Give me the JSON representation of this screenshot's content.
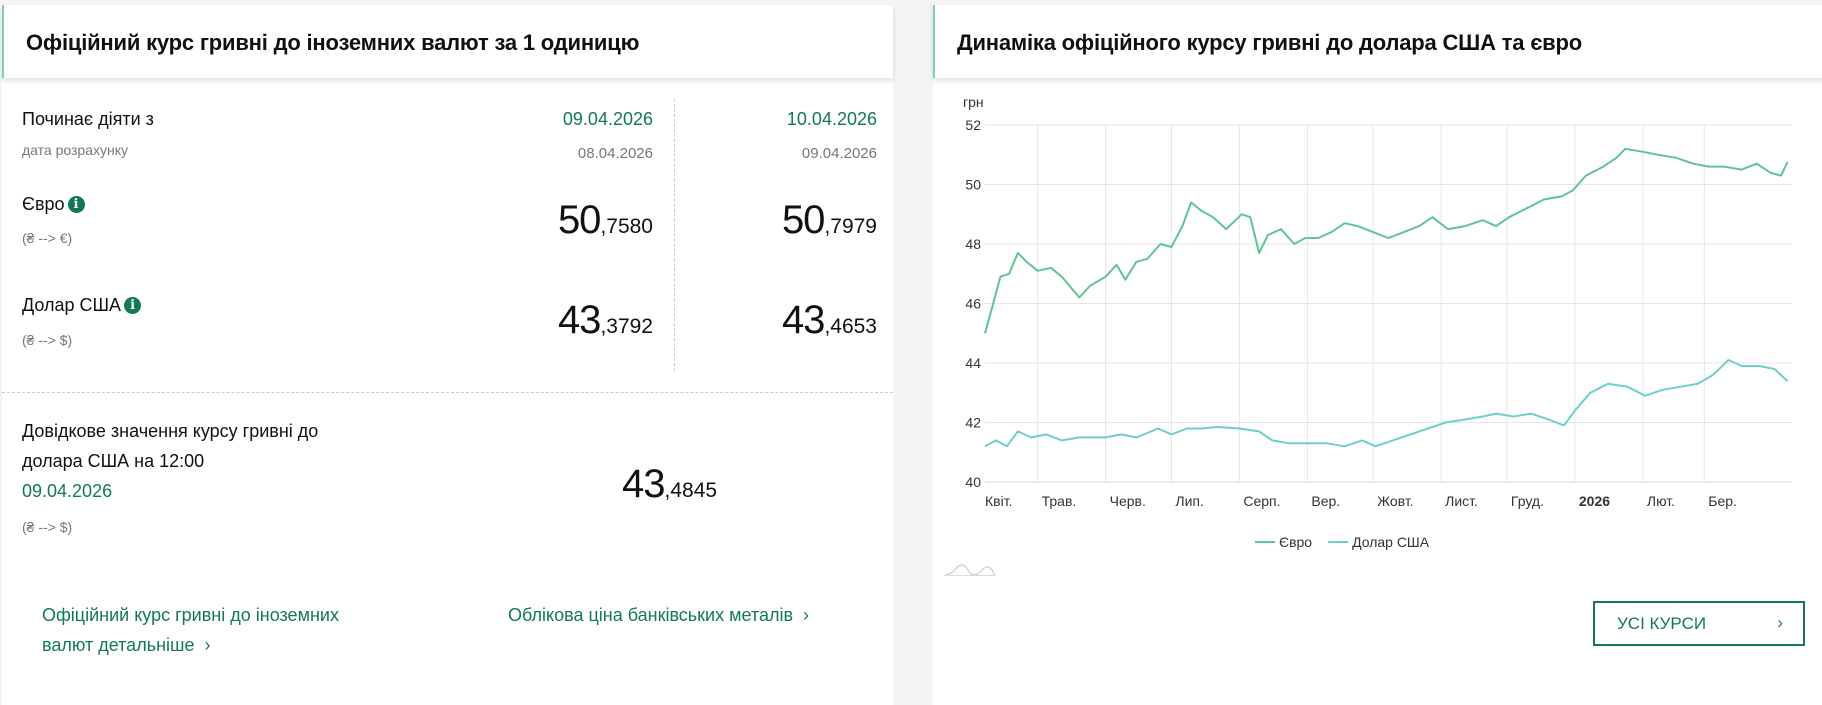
{
  "left": {
    "title": "Офіційний курс гривні до іноземних валют за 1 одиницю",
    "effective_label": "Починає діяти з",
    "calc_label": "дата розрахунку",
    "columns": [
      {
        "effective_date": "09.04.2026",
        "calc_date": "08.04.2026",
        "eur_int": "50",
        "eur_dec": ",7580",
        "usd_int": "43",
        "usd_dec": ",3792"
      },
      {
        "effective_date": "10.04.2026",
        "calc_date": "09.04.2026",
        "eur_int": "50",
        "eur_dec": ",7979",
        "usd_int": "43",
        "usd_dec": ",4653"
      }
    ],
    "eur_label": "Євро",
    "eur_direction": "(₴ --> €)",
    "usd_label": "Долар США",
    "usd_direction": "(₴ --> $)",
    "info_icon": "i",
    "reference": {
      "line1": "Довідкове значення курсу гривні до",
      "line2": "долара США на 12:00",
      "date": "09.04.2026",
      "direction": "(₴ --> $)",
      "value_int": "43",
      "value_dec": ",4845"
    },
    "links": {
      "details_line1": "Офіційний курс гривні до іноземних",
      "details_line2": "валют детальніше",
      "metals": "Облікова ціна банківських металів",
      "chevron": "›"
    }
  },
  "right": {
    "title": "Динаміка офіційного курсу гривні до долара США та євро",
    "button_label": "УСІ КУРСИ",
    "button_chevron": "›"
  },
  "colors": {
    "accent": "#127a52",
    "eur": "#5ec593",
    "usd": "#6fcfc9"
  },
  "chart_data": {
    "type": "line",
    "ylabel": "грн",
    "ylim": [
      40,
      52
    ],
    "yticks": [
      40,
      42,
      44,
      46,
      48,
      50,
      52
    ],
    "xlim": [
      "2025-04-07",
      "2026-04-10"
    ],
    "xticks": [
      {
        "date": "2025-04-07",
        "label": "Квіт."
      },
      {
        "date": "2025-05-01",
        "label": "Трав."
      },
      {
        "date": "2025-06-01",
        "label": "Черв."
      },
      {
        "date": "2025-07-01",
        "label": "Лип."
      },
      {
        "date": "2025-08-01",
        "label": "Серп."
      },
      {
        "date": "2025-09-01",
        "label": "Вер."
      },
      {
        "date": "2025-10-01",
        "label": "Жовт."
      },
      {
        "date": "2025-11-01",
        "label": "Лист."
      },
      {
        "date": "2025-12-01",
        "label": "Груд."
      },
      {
        "date": "2026-01-01",
        "label": "2026",
        "bold": true
      },
      {
        "date": "2026-02-01",
        "label": "Лют."
      },
      {
        "date": "2026-03-01",
        "label": "Бер."
      }
    ],
    "grid": true,
    "legend": "bottom",
    "series": [
      {
        "name": "Євро",
        "color": "#5ec593",
        "points": [
          [
            "2025-04-07",
            45.0
          ],
          [
            "2025-04-10",
            45.8
          ],
          [
            "2025-04-14",
            46.9
          ],
          [
            "2025-04-18",
            47.0
          ],
          [
            "2025-04-22",
            47.7
          ],
          [
            "2025-04-26",
            47.4
          ],
          [
            "2025-05-01",
            47.1
          ],
          [
            "2025-05-07",
            47.2
          ],
          [
            "2025-05-12",
            46.9
          ],
          [
            "2025-05-20",
            46.2
          ],
          [
            "2025-05-25",
            46.6
          ],
          [
            "2025-06-01",
            46.9
          ],
          [
            "2025-06-06",
            47.3
          ],
          [
            "2025-06-10",
            46.8
          ],
          [
            "2025-06-15",
            47.4
          ],
          [
            "2025-06-20",
            47.5
          ],
          [
            "2025-06-26",
            48.0
          ],
          [
            "2025-07-01",
            47.9
          ],
          [
            "2025-07-06",
            48.6
          ],
          [
            "2025-07-10",
            49.4
          ],
          [
            "2025-07-15",
            49.1
          ],
          [
            "2025-07-20",
            48.9
          ],
          [
            "2025-07-26",
            48.5
          ],
          [
            "2025-08-02",
            49.0
          ],
          [
            "2025-08-06",
            48.9
          ],
          [
            "2025-08-10",
            47.7
          ],
          [
            "2025-08-14",
            48.3
          ],
          [
            "2025-08-20",
            48.5
          ],
          [
            "2025-08-26",
            48.0
          ],
          [
            "2025-08-31",
            48.2
          ],
          [
            "2025-09-06",
            48.2
          ],
          [
            "2025-09-12",
            48.4
          ],
          [
            "2025-09-18",
            48.7
          ],
          [
            "2025-09-24",
            48.6
          ],
          [
            "2025-10-01",
            48.4
          ],
          [
            "2025-10-08",
            48.2
          ],
          [
            "2025-10-15",
            48.4
          ],
          [
            "2025-10-22",
            48.6
          ],
          [
            "2025-10-28",
            48.9
          ],
          [
            "2025-11-04",
            48.5
          ],
          [
            "2025-11-12",
            48.6
          ],
          [
            "2025-11-20",
            48.8
          ],
          [
            "2025-11-26",
            48.6
          ],
          [
            "2025-12-02",
            48.9
          ],
          [
            "2025-12-10",
            49.2
          ],
          [
            "2025-12-18",
            49.5
          ],
          [
            "2025-12-26",
            49.6
          ],
          [
            "2025-12-31",
            49.8
          ],
          [
            "2026-01-06",
            50.3
          ],
          [
            "2026-01-14",
            50.6
          ],
          [
            "2026-01-20",
            50.9
          ],
          [
            "2026-01-24",
            51.2
          ],
          [
            "2026-02-01",
            51.1
          ],
          [
            "2026-02-08",
            51.0
          ],
          [
            "2026-02-16",
            50.9
          ],
          [
            "2026-02-24",
            50.7
          ],
          [
            "2026-03-03",
            50.6
          ],
          [
            "2026-03-10",
            50.6
          ],
          [
            "2026-03-18",
            50.5
          ],
          [
            "2026-03-25",
            50.7
          ],
          [
            "2026-03-31",
            50.4
          ],
          [
            "2026-04-05",
            50.3
          ],
          [
            "2026-04-08",
            50.76
          ]
        ]
      },
      {
        "name": "Долар США",
        "color": "#6fcfc9",
        "points": [
          [
            "2025-04-07",
            41.2
          ],
          [
            "2025-04-12",
            41.4
          ],
          [
            "2025-04-17",
            41.2
          ],
          [
            "2025-04-22",
            41.7
          ],
          [
            "2025-04-28",
            41.5
          ],
          [
            "2025-05-05",
            41.6
          ],
          [
            "2025-05-12",
            41.4
          ],
          [
            "2025-05-20",
            41.5
          ],
          [
            "2025-06-01",
            41.5
          ],
          [
            "2025-06-08",
            41.6
          ],
          [
            "2025-06-15",
            41.5
          ],
          [
            "2025-06-25",
            41.8
          ],
          [
            "2025-07-01",
            41.6
          ],
          [
            "2025-07-08",
            41.8
          ],
          [
            "2025-07-15",
            41.8
          ],
          [
            "2025-07-22",
            41.85
          ],
          [
            "2025-08-01",
            41.8
          ],
          [
            "2025-08-10",
            41.7
          ],
          [
            "2025-08-16",
            41.4
          ],
          [
            "2025-08-24",
            41.3
          ],
          [
            "2025-09-01",
            41.3
          ],
          [
            "2025-09-10",
            41.3
          ],
          [
            "2025-09-18",
            41.2
          ],
          [
            "2025-09-26",
            41.4
          ],
          [
            "2025-10-02",
            41.2
          ],
          [
            "2025-10-10",
            41.4
          ],
          [
            "2025-10-18",
            41.6
          ],
          [
            "2025-10-26",
            41.8
          ],
          [
            "2025-11-03",
            42.0
          ],
          [
            "2025-11-12",
            42.1
          ],
          [
            "2025-11-20",
            42.2
          ],
          [
            "2025-11-26",
            42.3
          ],
          [
            "2025-12-04",
            42.2
          ],
          [
            "2025-12-12",
            42.3
          ],
          [
            "2025-12-20",
            42.1
          ],
          [
            "2025-12-27",
            41.9
          ],
          [
            "2026-01-01",
            42.4
          ],
          [
            "2026-01-08",
            43.0
          ],
          [
            "2026-01-16",
            43.3
          ],
          [
            "2026-01-25",
            43.2
          ],
          [
            "2026-02-02",
            42.9
          ],
          [
            "2026-02-10",
            43.1
          ],
          [
            "2026-02-18",
            43.2
          ],
          [
            "2026-02-26",
            43.3
          ],
          [
            "2026-03-05",
            43.6
          ],
          [
            "2026-03-12",
            44.1
          ],
          [
            "2026-03-18",
            43.9
          ],
          [
            "2026-03-26",
            43.9
          ],
          [
            "2026-04-02",
            43.8
          ],
          [
            "2026-04-08",
            43.38
          ]
        ]
      }
    ]
  }
}
